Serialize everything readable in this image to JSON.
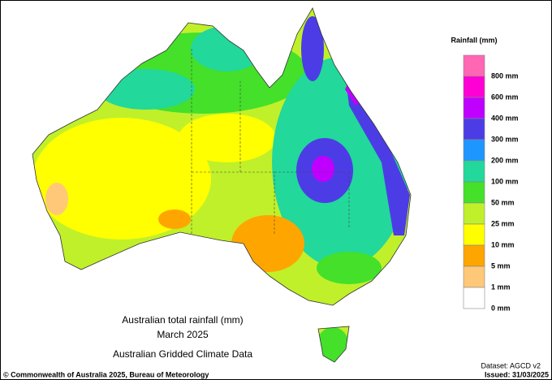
{
  "map": {
    "title": "Australian total rainfall (mm)",
    "period": "March 2025",
    "source": "Australian Gridded Climate Data",
    "dataset": "Dataset: AGCD v2",
    "copyright": "© Commonwealth of Australia 2025, Bureau of Meteorology",
    "issued": "Issued: 31/03/2025",
    "legend": {
      "title": "Rainfall (mm)",
      "colors": [
        "#ff66b3",
        "#ff00d4",
        "#c000ff",
        "#4c3ce6",
        "#1e96ff",
        "#22d89a",
        "#44e02a",
        "#c0f02a",
        "#ffff00",
        "#ffa500",
        "#ffc878",
        "#ffffff"
      ],
      "labels": [
        "800 mm",
        "600 mm",
        "400 mm",
        "300 mm",
        "200 mm",
        "100 mm",
        "50 mm",
        "25 mm",
        "10 mm",
        "5 mm",
        "1 mm",
        "0 mm"
      ]
    }
  }
}
